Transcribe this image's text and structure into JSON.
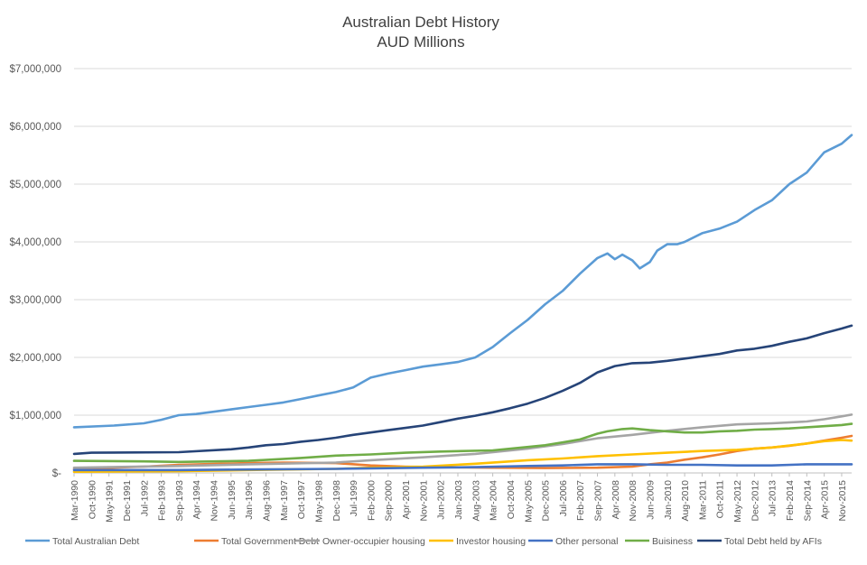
{
  "chart_data": {
    "type": "line",
    "title": "Australian Debt History",
    "subtitle": "AUD Millions",
    "xlabel": "",
    "ylabel": "",
    "ylim": [
      0,
      7000000
    ],
    "yticks": [
      0,
      1000000,
      2000000,
      3000000,
      4000000,
      5000000,
      6000000,
      7000000
    ],
    "ytick_labels": [
      "$-",
      "$1,000,000",
      "$2,000,000",
      "$3,000,000",
      "$4,000,000",
      "$5,000,000",
      "$6,000,000",
      "$7,000,000"
    ],
    "x_start": "Mar-1990",
    "x_end": "Mar-2016",
    "xtick_labels": [
      "Mar-1990",
      "Oct-1990",
      "May-1991",
      "Dec-1991",
      "Jul-1992",
      "Feb-1993",
      "Sep-1993",
      "Apr-1994",
      "Nov-1994",
      "Jun-1995",
      "Jan-1996",
      "Aug-1996",
      "Mar-1997",
      "Oct-1997",
      "May-1998",
      "Dec-1998",
      "Jul-1999",
      "Feb-2000",
      "Sep-2000",
      "Apr-2001",
      "Nov-2001",
      "Jun-2002",
      "Jan-2003",
      "Aug-2003",
      "Mar-2004",
      "Oct-2004",
      "May-2005",
      "Dec-2005",
      "Jul-2006",
      "Feb-2007",
      "Sep-2007",
      "Apr-2008",
      "Nov-2008",
      "Jun-2009",
      "Jan-2010",
      "Aug-2010",
      "Mar-2011",
      "Oct-2011",
      "May-2012",
      "Dec-2012",
      "Jul-2013",
      "Feb-2014",
      "Sep-2014",
      "Apr-2015",
      "Nov-2015"
    ],
    "grid": true,
    "legend_position": "bottom",
    "series": [
      {
        "name": "Total Australian Debt",
        "color": "#5B9BD5",
        "points": [
          [
            "Mar-1990",
            790000
          ],
          [
            "Jul-1991",
            820000
          ],
          [
            "Jul-1992",
            860000
          ],
          [
            "Feb-1993",
            920000
          ],
          [
            "Sep-1993",
            1000000
          ],
          [
            "Apr-1994",
            1020000
          ],
          [
            "Nov-1994",
            1060000
          ],
          [
            "Jun-1995",
            1100000
          ],
          [
            "Jan-1996",
            1140000
          ],
          [
            "Aug-1996",
            1180000
          ],
          [
            "Mar-1997",
            1220000
          ],
          [
            "Oct-1997",
            1280000
          ],
          [
            "May-1998",
            1340000
          ],
          [
            "Dec-1998",
            1400000
          ],
          [
            "Jul-1999",
            1480000
          ],
          [
            "Feb-2000",
            1650000
          ],
          [
            "Sep-2000",
            1720000
          ],
          [
            "Apr-2001",
            1780000
          ],
          [
            "Nov-2001",
            1840000
          ],
          [
            "Jun-2002",
            1880000
          ],
          [
            "Jan-2003",
            1920000
          ],
          [
            "Aug-2003",
            2000000
          ],
          [
            "Mar-2004",
            2180000
          ],
          [
            "Oct-2004",
            2420000
          ],
          [
            "May-2005",
            2650000
          ],
          [
            "Dec-2005",
            2920000
          ],
          [
            "Jul-2006",
            3150000
          ],
          [
            "Feb-2007",
            3450000
          ],
          [
            "Sep-2007",
            3720000
          ],
          [
            "Jan-2008",
            3800000
          ],
          [
            "Apr-2008",
            3700000
          ],
          [
            "Jul-2008",
            3780000
          ],
          [
            "Nov-2008",
            3680000
          ],
          [
            "Feb-2009",
            3540000
          ],
          [
            "Jun-2009",
            3650000
          ],
          [
            "Sep-2009",
            3850000
          ],
          [
            "Jan-2010",
            3960000
          ],
          [
            "May-2010",
            3960000
          ],
          [
            "Aug-2010",
            4000000
          ],
          [
            "Mar-2011",
            4150000
          ],
          [
            "Oct-2011",
            4230000
          ],
          [
            "May-2012",
            4350000
          ],
          [
            "Dec-2012",
            4550000
          ],
          [
            "Jul-2013",
            4720000
          ],
          [
            "Feb-2014",
            5000000
          ],
          [
            "Sep-2014",
            5200000
          ],
          [
            "Apr-2015",
            5550000
          ],
          [
            "Nov-2015",
            5700000
          ],
          [
            "Mar-2016",
            5850000
          ]
        ]
      },
      {
        "name": "Total Government Debt",
        "color": "#ED7D31",
        "points": [
          [
            "Mar-1990",
            70000
          ],
          [
            "Jul-1992",
            110000
          ],
          [
            "Sep-1993",
            140000
          ],
          [
            "Jan-1996",
            170000
          ],
          [
            "Mar-1997",
            180000
          ],
          [
            "Dec-1998",
            170000
          ],
          [
            "Feb-2000",
            130000
          ],
          [
            "Apr-2001",
            110000
          ],
          [
            "Jun-2002",
            100000
          ],
          [
            "Mar-2004",
            90000
          ],
          [
            "Dec-2005",
            85000
          ],
          [
            "Sep-2007",
            90000
          ],
          [
            "Nov-2008",
            110000
          ],
          [
            "Jun-2009",
            150000
          ],
          [
            "Jan-2010",
            180000
          ],
          [
            "Aug-2010",
            230000
          ],
          [
            "Mar-2011",
            270000
          ],
          [
            "Oct-2011",
            320000
          ],
          [
            "May-2012",
            380000
          ],
          [
            "Dec-2012",
            420000
          ],
          [
            "Jul-2013",
            440000
          ],
          [
            "Feb-2014",
            470000
          ],
          [
            "Sep-2014",
            510000
          ],
          [
            "Apr-2015",
            560000
          ],
          [
            "Nov-2015",
            610000
          ],
          [
            "Mar-2016",
            640000
          ]
        ]
      },
      {
        "name": "Owner-occupier housing",
        "color": "#A5A5A5",
        "points": [
          [
            "Mar-1990",
            90000
          ],
          [
            "Sep-1993",
            120000
          ],
          [
            "Jan-1996",
            150000
          ],
          [
            "Dec-1998",
            180000
          ],
          [
            "Feb-2000",
            220000
          ],
          [
            "Nov-2001",
            270000
          ],
          [
            "Aug-2003",
            330000
          ],
          [
            "May-2005",
            420000
          ],
          [
            "Jul-2006",
            500000
          ],
          [
            "Sep-2007",
            600000
          ],
          [
            "Nov-2008",
            660000
          ],
          [
            "Jan-2010",
            730000
          ],
          [
            "Mar-2011",
            790000
          ],
          [
            "May-2012",
            840000
          ],
          [
            "Jul-2013",
            860000
          ],
          [
            "Sep-2014",
            890000
          ],
          [
            "Apr-2015",
            930000
          ],
          [
            "Nov-2015",
            980000
          ],
          [
            "Mar-2016",
            1010000
          ]
        ]
      },
      {
        "name": "Investor housing",
        "color": "#FFC000",
        "points": [
          [
            "Mar-1990",
            20000
          ],
          [
            "Sep-1993",
            30000
          ],
          [
            "Jan-1996",
            50000
          ],
          [
            "Dec-1998",
            70000
          ],
          [
            "Feb-2000",
            90000
          ],
          [
            "Nov-2001",
            110000
          ],
          [
            "Aug-2003",
            160000
          ],
          [
            "May-2005",
            220000
          ],
          [
            "Jul-2006",
            250000
          ],
          [
            "Sep-2007",
            290000
          ],
          [
            "Nov-2008",
            320000
          ],
          [
            "Jan-2010",
            350000
          ],
          [
            "Mar-2011",
            380000
          ],
          [
            "May-2012",
            400000
          ],
          [
            "Jul-2013",
            440000
          ],
          [
            "Sep-2014",
            510000
          ],
          [
            "Apr-2015",
            550000
          ],
          [
            "Nov-2015",
            570000
          ],
          [
            "Mar-2016",
            560000
          ]
        ]
      },
      {
        "name": "Other personal",
        "color": "#4472C4",
        "points": [
          [
            "Mar-1990",
            50000
          ],
          [
            "Sep-1993",
            50000
          ],
          [
            "Jan-1996",
            60000
          ],
          [
            "Dec-1998",
            70000
          ],
          [
            "Feb-2000",
            80000
          ],
          [
            "Nov-2001",
            90000
          ],
          [
            "Aug-2003",
            100000
          ],
          [
            "May-2005",
            120000
          ],
          [
            "Jul-2006",
            130000
          ],
          [
            "Sep-2007",
            150000
          ],
          [
            "Nov-2008",
            150000
          ],
          [
            "Jan-2010",
            140000
          ],
          [
            "Mar-2011",
            140000
          ],
          [
            "May-2012",
            130000
          ],
          [
            "Jul-2013",
            130000
          ],
          [
            "Sep-2014",
            150000
          ],
          [
            "Apr-2015",
            150000
          ],
          [
            "Nov-2015",
            150000
          ],
          [
            "Mar-2016",
            150000
          ]
        ]
      },
      {
        "name": "Buisiness",
        "color": "#70AD47",
        "points": [
          [
            "Mar-1990",
            210000
          ],
          [
            "Jul-1992",
            200000
          ],
          [
            "Sep-1993",
            190000
          ],
          [
            "Jan-1996",
            210000
          ],
          [
            "Oct-1997",
            260000
          ],
          [
            "Dec-1998",
            300000
          ],
          [
            "Feb-2000",
            320000
          ],
          [
            "Apr-2001",
            350000
          ],
          [
            "Jun-2002",
            370000
          ],
          [
            "Mar-2004",
            390000
          ],
          [
            "Dec-2005",
            480000
          ],
          [
            "Jul-2006",
            530000
          ],
          [
            "Feb-2007",
            580000
          ],
          [
            "Sep-2007",
            680000
          ],
          [
            "Jan-2008",
            720000
          ],
          [
            "Jul-2008",
            760000
          ],
          [
            "Nov-2008",
            770000
          ],
          [
            "Jun-2009",
            740000
          ],
          [
            "Jan-2010",
            720000
          ],
          [
            "Aug-2010",
            700000
          ],
          [
            "Mar-2011",
            700000
          ],
          [
            "Oct-2011",
            720000
          ],
          [
            "May-2012",
            730000
          ],
          [
            "Dec-2012",
            750000
          ],
          [
            "Jul-2013",
            760000
          ],
          [
            "Feb-2014",
            770000
          ],
          [
            "Sep-2014",
            790000
          ],
          [
            "Apr-2015",
            810000
          ],
          [
            "Nov-2015",
            830000
          ],
          [
            "Mar-2016",
            850000
          ]
        ]
      },
      {
        "name": "Total Debt held by AFIs",
        "color": "#264478",
        "points": [
          [
            "Mar-1990",
            330000
          ],
          [
            "Oct-1990",
            350000
          ],
          [
            "Sep-1993",
            360000
          ],
          [
            "Jun-1995",
            410000
          ],
          [
            "Jan-1996",
            440000
          ],
          [
            "Aug-1996",
            480000
          ],
          [
            "Mar-1997",
            500000
          ],
          [
            "Oct-1997",
            540000
          ],
          [
            "May-1998",
            570000
          ],
          [
            "Dec-1998",
            610000
          ],
          [
            "Jul-1999",
            660000
          ],
          [
            "Feb-2000",
            700000
          ],
          [
            "Sep-2000",
            740000
          ],
          [
            "Apr-2001",
            780000
          ],
          [
            "Nov-2001",
            820000
          ],
          [
            "Jun-2002",
            880000
          ],
          [
            "Jan-2003",
            940000
          ],
          [
            "Aug-2003",
            990000
          ],
          [
            "Mar-2004",
            1050000
          ],
          [
            "Oct-2004",
            1120000
          ],
          [
            "May-2005",
            1200000
          ],
          [
            "Dec-2005",
            1300000
          ],
          [
            "Jul-2006",
            1420000
          ],
          [
            "Feb-2007",
            1560000
          ],
          [
            "Sep-2007",
            1740000
          ],
          [
            "Apr-2008",
            1850000
          ],
          [
            "Nov-2008",
            1900000
          ],
          [
            "Jun-2009",
            1910000
          ],
          [
            "Jan-2010",
            1940000
          ],
          [
            "Aug-2010",
            1980000
          ],
          [
            "Mar-2011",
            2020000
          ],
          [
            "Oct-2011",
            2060000
          ],
          [
            "May-2012",
            2120000
          ],
          [
            "Dec-2012",
            2150000
          ],
          [
            "Jul-2013",
            2200000
          ],
          [
            "Feb-2014",
            2270000
          ],
          [
            "Sep-2014",
            2330000
          ],
          [
            "Apr-2015",
            2420000
          ],
          [
            "Nov-2015",
            2500000
          ],
          [
            "Mar-2016",
            2550000
          ]
        ]
      }
    ]
  }
}
